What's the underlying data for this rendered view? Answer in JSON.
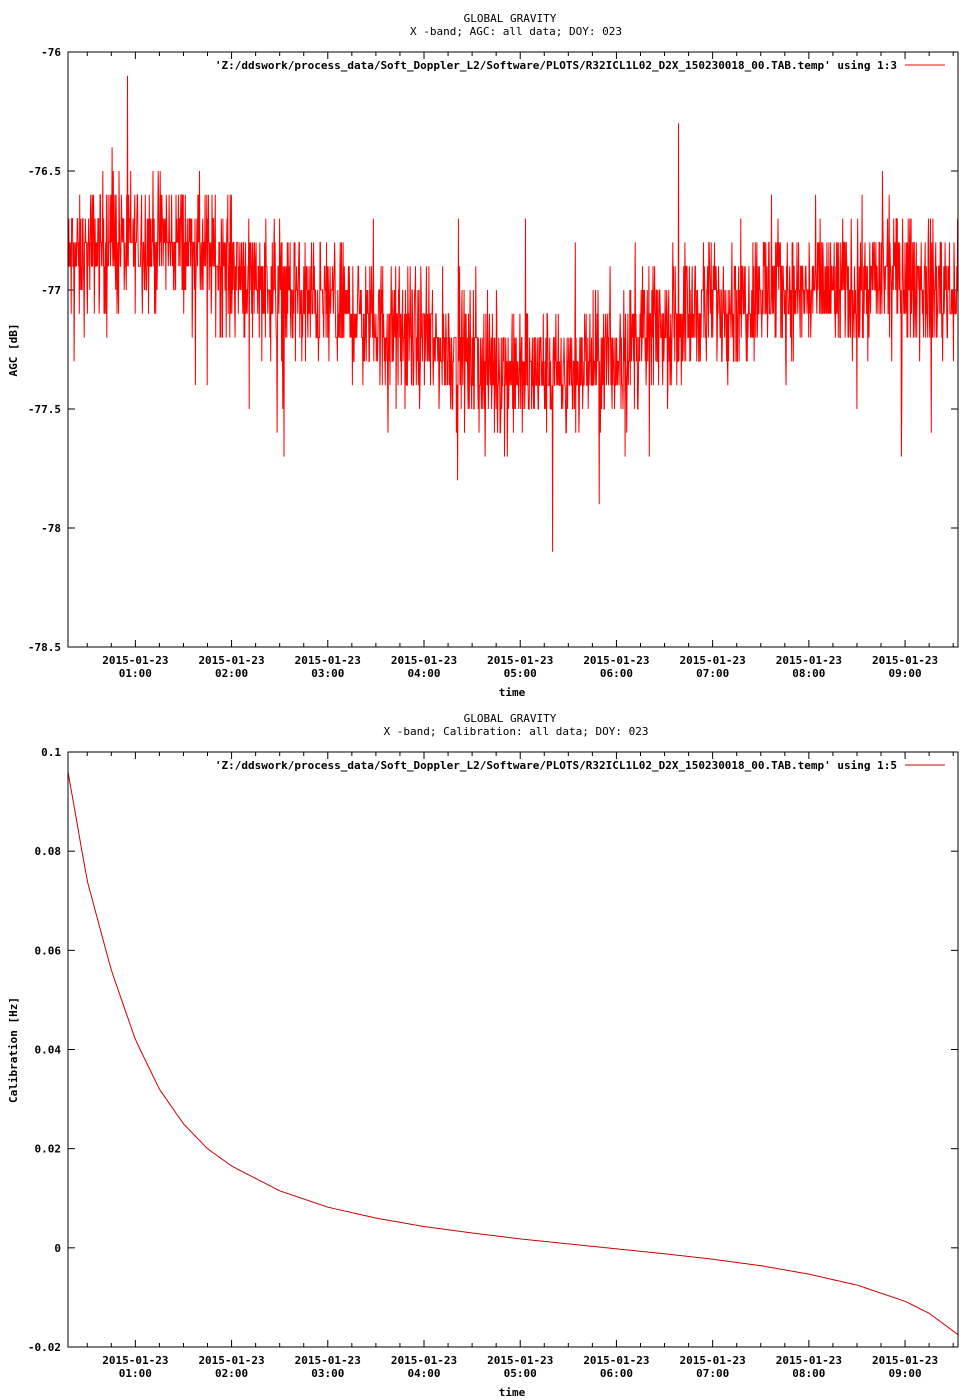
{
  "chart_data": [
    {
      "type": "line",
      "title": "GLOBAL GRAVITY",
      "subtitle": "X -band; AGC: all data; DOY: 023",
      "xlabel": "time",
      "ylabel": "AGC [dB]",
      "ylim": [
        -78.5,
        -76
      ],
      "yticks": [
        "-76",
        "-76.5",
        "-77",
        "-77.5",
        "-78",
        "-78.5"
      ],
      "x_tick_dates": [
        "2015-01-23",
        "2015-01-23",
        "2015-01-23",
        "2015-01-23",
        "2015-01-23",
        "2015-01-23",
        "2015-01-23",
        "2015-01-23",
        "2015-01-23"
      ],
      "x_tick_times": [
        "01:00",
        "02:00",
        "03:00",
        "04:00",
        "05:00",
        "06:00",
        "07:00",
        "08:00",
        "09:00"
      ],
      "xlim": [
        "2015-01-23T00:18",
        "2015-01-23T09:33"
      ],
      "grid": false,
      "legend_position": "top-right",
      "series": [
        {
          "name": "'Z:/ddswork/process_data/Soft_Doppler_L2/Software/PLOTS/R32ICL1L02_D2X_150230018_00.TAB.temp' using 1:3",
          "color": "#ff0000",
          "x": [
            "00:18",
            "00:30",
            "00:45",
            "01:00",
            "01:15",
            "01:30",
            "01:45",
            "02:00",
            "02:15",
            "02:30",
            "02:45",
            "03:00",
            "03:15",
            "03:30",
            "03:45",
            "04:00",
            "04:15",
            "04:30",
            "04:45",
            "05:00",
            "05:15",
            "05:30",
            "05:45",
            "06:00",
            "06:15",
            "06:30",
            "06:45",
            "07:00",
            "07:15",
            "07:30",
            "07:45",
            "08:00",
            "08:15",
            "08:30",
            "08:45",
            "09:00",
            "09:15",
            "09:30"
          ],
          "values": [
            -76.9,
            -76.85,
            -76.8,
            -76.8,
            -76.8,
            -76.8,
            -76.85,
            -76.9,
            -76.95,
            -77.0,
            -77.05,
            -77.05,
            -77.1,
            -77.15,
            -77.2,
            -77.2,
            -77.25,
            -77.3,
            -77.35,
            -77.35,
            -77.35,
            -77.35,
            -77.3,
            -77.3,
            -77.2,
            -77.15,
            -77.1,
            -77.05,
            -77.05,
            -77.0,
            -77.0,
            -77.0,
            -77.0,
            -77.0,
            -76.95,
            -76.95,
            -77.0,
            -77.0
          ],
          "noise_amplitude_db": 0.4,
          "min_value": -78.2,
          "max_value": -76.1
        }
      ]
    },
    {
      "type": "line",
      "title": "GLOBAL GRAVITY",
      "subtitle": "X -band; Calibration: all data; DOY: 023",
      "xlabel": "time",
      "ylabel": "Calibration [Hz]",
      "ylim": [
        -0.02,
        0.1
      ],
      "yticks": [
        "0.1",
        "0.08",
        "0.06",
        "0.04",
        "0.02",
        "0",
        "-0.02"
      ],
      "x_tick_dates": [
        "2015-01-23",
        "2015-01-23",
        "2015-01-23",
        "2015-01-23",
        "2015-01-23",
        "2015-01-23",
        "2015-01-23",
        "2015-01-23",
        "2015-01-23"
      ],
      "x_tick_times": [
        "01:00",
        "02:00",
        "03:00",
        "04:00",
        "05:00",
        "06:00",
        "07:00",
        "08:00",
        "09:00"
      ],
      "xlim": [
        "2015-01-23T00:18",
        "2015-01-23T09:33"
      ],
      "grid": false,
      "legend_position": "top-right",
      "series": [
        {
          "name": "'Z:/ddswork/process_data/Soft_Doppler_L2/Software/PLOTS/R32ICL1L02_D2X_150230018_00.TAB.temp' using 1:5",
          "color": "#cc0000",
          "x": [
            "00:18",
            "00:30",
            "00:45",
            "01:00",
            "01:15",
            "01:30",
            "01:45",
            "02:00",
            "02:30",
            "03:00",
            "03:30",
            "04:00",
            "04:30",
            "05:00",
            "05:30",
            "06:00",
            "06:30",
            "07:00",
            "07:30",
            "08:00",
            "08:30",
            "09:00",
            "09:15",
            "09:33"
          ],
          "values": [
            0.096,
            0.074,
            0.056,
            0.042,
            0.032,
            0.025,
            0.02,
            0.0165,
            0.0115,
            0.0082,
            0.006,
            0.0043,
            0.003,
            0.0018,
            0.0008,
            -0.0002,
            -0.0012,
            -0.0023,
            -0.0036,
            -0.0053,
            -0.0075,
            -0.0108,
            -0.0132,
            -0.0175
          ]
        }
      ]
    }
  ]
}
